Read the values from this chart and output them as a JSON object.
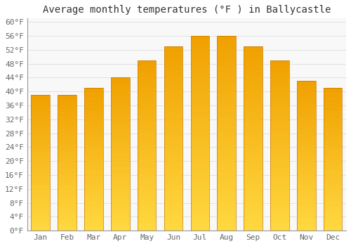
{
  "title": "Average monthly temperatures (°F ) in Ballycastle",
  "months": [
    "Jan",
    "Feb",
    "Mar",
    "Apr",
    "May",
    "Jun",
    "Jul",
    "Aug",
    "Sep",
    "Oct",
    "Nov",
    "Dec"
  ],
  "values": [
    39,
    39,
    41,
    44,
    49,
    53,
    56,
    56,
    53,
    49,
    43,
    41
  ],
  "bar_color_bottom": "#FFD840",
  "bar_color_top": "#F0A000",
  "bar_edge_color": "#C87800",
  "ylim": [
    0,
    61
  ],
  "yticks": [
    0,
    4,
    8,
    12,
    16,
    20,
    24,
    28,
    32,
    36,
    40,
    44,
    48,
    52,
    56,
    60
  ],
  "ytick_labels": [
    "0°F",
    "4°F",
    "8°F",
    "12°F",
    "16°F",
    "20°F",
    "24°F",
    "28°F",
    "32°F",
    "36°F",
    "40°F",
    "44°F",
    "48°F",
    "52°F",
    "56°F",
    "60°F"
  ],
  "grid_color": "#dddddd",
  "background_color": "#ffffff",
  "plot_bg_color": "#f8f8f8",
  "title_fontsize": 10,
  "tick_fontsize": 8,
  "font_family": "monospace"
}
